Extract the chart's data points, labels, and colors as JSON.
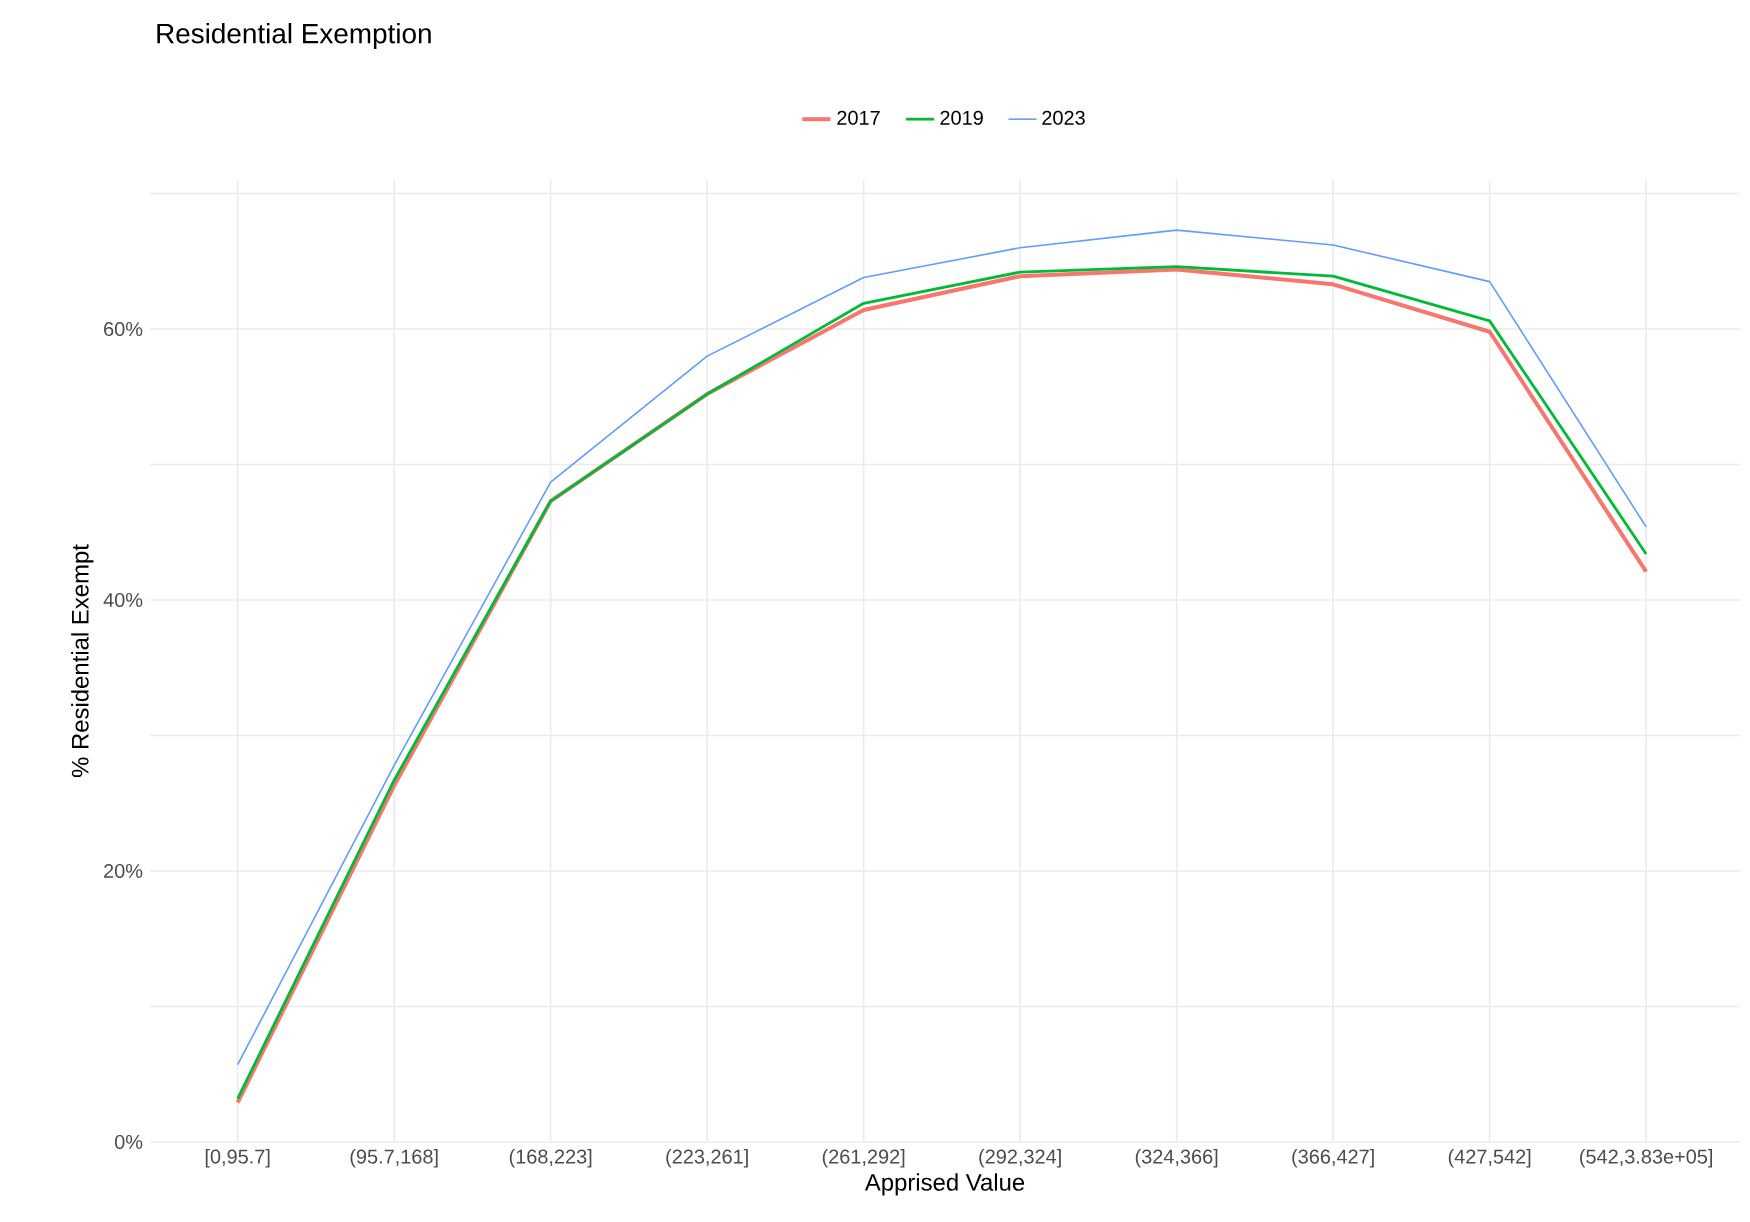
{
  "chart_data": {
    "type": "line",
    "title": "Residential Exemption",
    "xlabel": "Apprised Value",
    "ylabel": "% Residential Exempt",
    "categories": [
      "[0,95.7]",
      "(95.7,168]",
      "(168,223]",
      "(223,261]",
      "(261,292]",
      "(292,324]",
      "(324,366]",
      "(366,427]",
      "(427,542]",
      "(542,3.83e+05]"
    ],
    "series": [
      {
        "name": "2017",
        "color": "#f8766d",
        "values": [
          2.9,
          26.3,
          47.3,
          55.2,
          61.4,
          63.9,
          64.4,
          63.3,
          59.8,
          42.1
        ]
      },
      {
        "name": "2019",
        "color": "#00ba38",
        "values": [
          3.2,
          26.7,
          47.3,
          55.2,
          61.9,
          64.2,
          64.6,
          63.9,
          60.6,
          43.4
        ]
      },
      {
        "name": "2023",
        "color": "#619cff",
        "values": [
          5.7,
          27.8,
          48.7,
          58.0,
          63.8,
          66.0,
          67.3,
          66.2,
          63.5,
          45.4
        ]
      }
    ],
    "ylim": [
      0,
      71
    ],
    "yticks": [
      {
        "value": 0,
        "label": "0%"
      },
      {
        "value": 10,
        "label": null
      },
      {
        "value": 20,
        "label": "20%"
      },
      {
        "value": 30,
        "label": null
      },
      {
        "value": 40,
        "label": "40%"
      },
      {
        "value": 50,
        "label": null
      },
      {
        "value": 60,
        "label": "60%"
      },
      {
        "value": 70,
        "label": null
      }
    ],
    "grid": true,
    "legend": "top",
    "marker": "none",
    "line_style": "solid"
  }
}
